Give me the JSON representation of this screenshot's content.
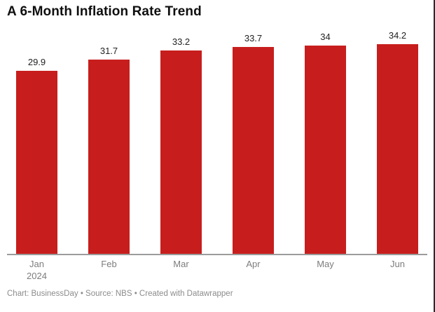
{
  "title": "A 6-Month Inflation Rate Trend",
  "footer": "Chart: BusinessDay • Source: NBS • Created with Datawrapper",
  "chart_data": {
    "type": "bar",
    "title": "A 6-Month Inflation Rate Trend",
    "categories": [
      "Jan",
      "Feb",
      "Mar",
      "Apr",
      "May",
      "Jun"
    ],
    "category_sublabels": [
      "2024",
      "",
      "",
      "",
      "",
      ""
    ],
    "values": [
      29.9,
      31.7,
      33.2,
      33.7,
      34,
      34.2
    ],
    "value_labels": [
      "29.9",
      "31.7",
      "33.2",
      "33.7",
      "34",
      "34.2"
    ],
    "xlabel": "",
    "ylabel": "",
    "ylim": [
      0,
      34.2
    ],
    "grid": false,
    "legend": "none",
    "bar_orientation": "vertical"
  },
  "colors": {
    "bg": "#ffffff",
    "bar": "#c71e1d",
    "axis": "#9b9b9b",
    "title": "#0f0f0f",
    "valuelabel": "#222222",
    "tick": "#7d7d7d",
    "footer": "#8c8c8c",
    "edge": "#2a2a2a"
  }
}
